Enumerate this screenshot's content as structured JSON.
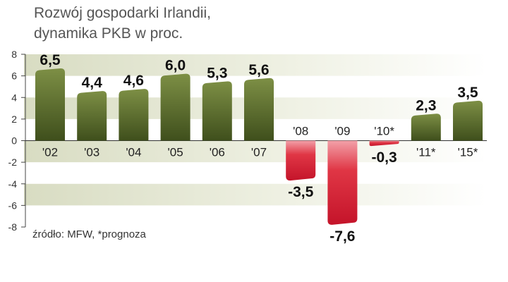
{
  "title_lines": [
    "Rozwój gospodarki Irlandii,",
    "dynamika PKB w proc."
  ],
  "source": "źródło:  MFW, *prognoza",
  "colors": {
    "positive": "#5b6d2c",
    "negative": "#d42a3a",
    "band": "#e3e6d2"
  },
  "chart_data": {
    "type": "bar",
    "title": "Rozwój gospodarki Irlandii, dynamika PKB w proc.",
    "categories": [
      "'02",
      "'03",
      "'04",
      "'05",
      "'06",
      "'07",
      "'08",
      "'09",
      "'10*",
      "'11*",
      "'15*"
    ],
    "values": [
      6.5,
      4.4,
      4.6,
      6.0,
      5.3,
      5.6,
      -3.5,
      -7.6,
      -0.3,
      2.3,
      3.5
    ],
    "value_labels": [
      "6,5",
      "4,4",
      "4,6",
      "6,0",
      "5,3",
      "5,6",
      "-3,5",
      "-7,6",
      "-0,3",
      "2,3",
      "3,5"
    ],
    "ylim": [
      -8,
      8
    ],
    "yticks": [
      8,
      6,
      4,
      2,
      0,
      -2,
      -4,
      -6,
      -8
    ],
    "ytick_labels": [
      "8",
      "6",
      "4",
      "2",
      "0",
      "-2",
      "-4",
      "-6",
      "-8"
    ],
    "xlabel": "",
    "ylabel": "",
    "grid": "horizontal bands",
    "legend": "none"
  }
}
